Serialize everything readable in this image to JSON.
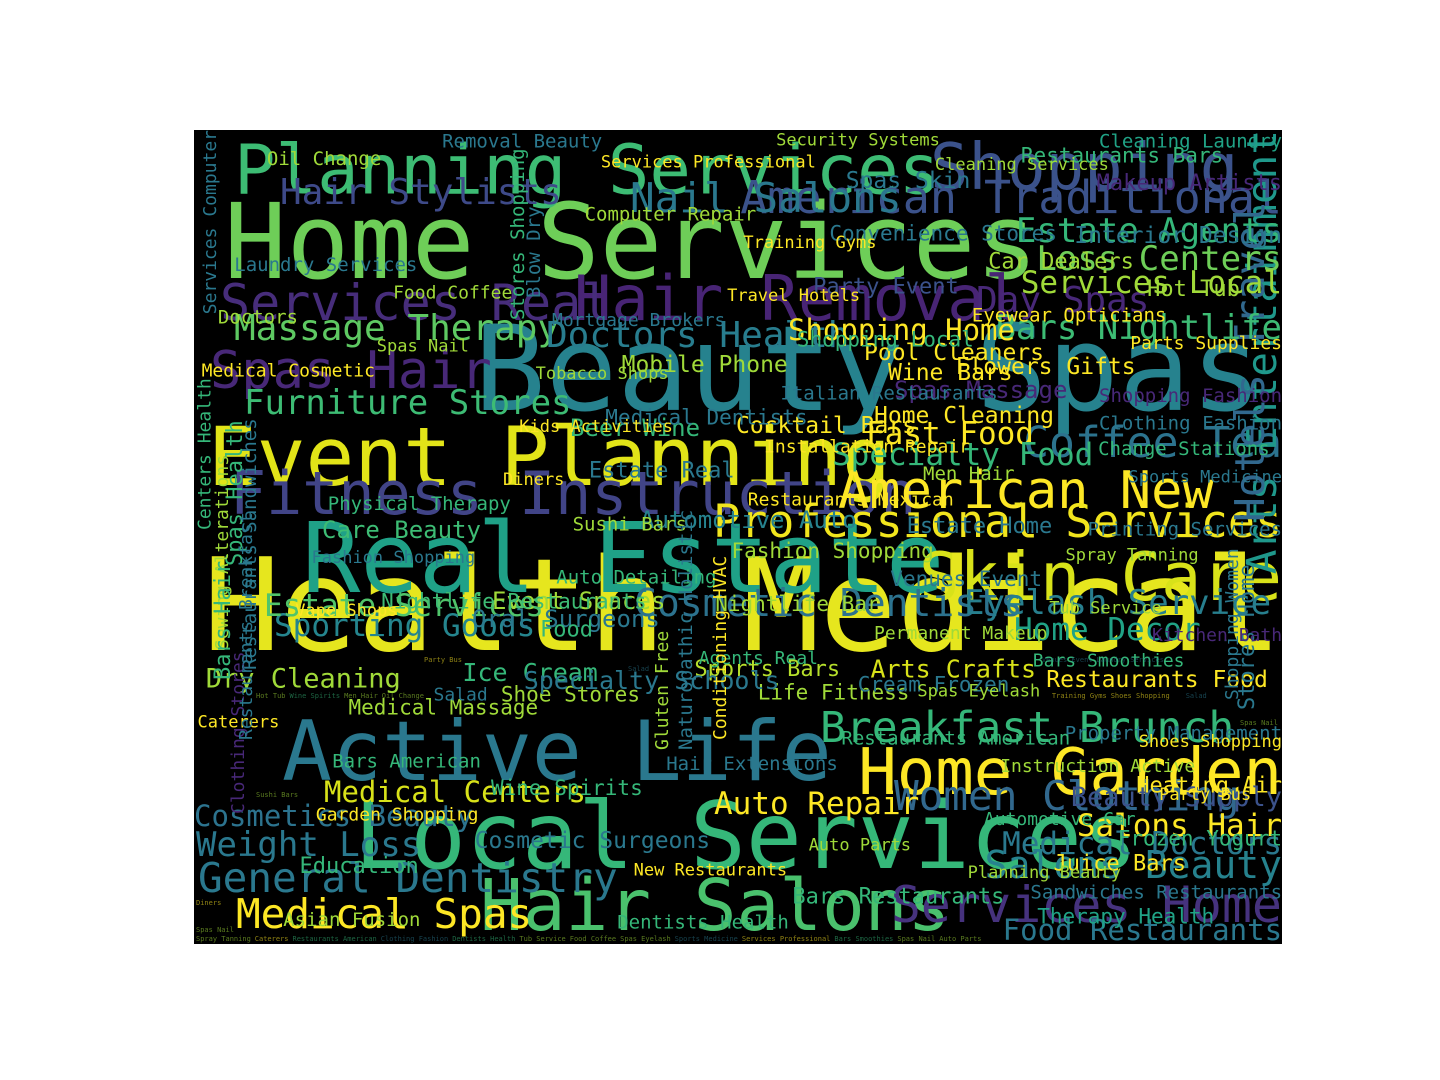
{
  "wordcloud": {
    "palette": [
      "#fde725",
      "#c2df23",
      "#7ad151",
      "#35b779",
      "#22a884",
      "#1f988b",
      "#23888e",
      "#2a788e",
      "#33638d",
      "#3b528b",
      "#433e85",
      "#482374",
      "#440154"
    ],
    "words": [
      {
        "text": "Health Medical",
        "weight": 1.0,
        "color": "#e6e61e"
      },
      {
        "text": "Beauty Spas",
        "weight": 0.92,
        "color": "#26828e"
      },
      {
        "text": "Home Services",
        "weight": 0.8,
        "color": "#6ece58"
      },
      {
        "text": "Real Estate",
        "weight": 0.74,
        "color": "#1fa187"
      },
      {
        "text": "Local Services",
        "weight": 0.7,
        "color": "#35b779"
      },
      {
        "text": "Active Life",
        "weight": 0.62,
        "color": "#2a788e"
      },
      {
        "text": "Event Planning",
        "weight": 0.6,
        "color": "#e2e418"
      },
      {
        "text": "Hair Salons",
        "weight": 0.52,
        "color": "#4ac16d"
      },
      {
        "text": "Planning Services",
        "weight": 0.5,
        "color": "#3dbc74"
      },
      {
        "text": "Skin Care",
        "weight": 0.48,
        "color": "#d8e219"
      },
      {
        "text": "Home Garden",
        "weight": 0.46,
        "color": "#fde725"
      },
      {
        "text": "Shopping",
        "weight": 0.46,
        "color": "#3b528b"
      },
      {
        "text": "Hair Removal",
        "weight": 0.44,
        "color": "#482475"
      },
      {
        "text": "Fitness Instruction",
        "weight": 0.42,
        "color": "#414487"
      },
      {
        "text": "Spas Hair",
        "weight": 0.36,
        "color": "#482878"
      },
      {
        "text": "Services Real",
        "weight": 0.34,
        "color": "#472d7b"
      },
      {
        "text": "American New",
        "weight": 0.36,
        "color": "#fde725"
      },
      {
        "text": "Services Home",
        "weight": 0.34,
        "color": "#46327e"
      },
      {
        "text": "Professional Services",
        "weight": 0.3,
        "color": "#f1e51d"
      },
      {
        "text": "American Traditional",
        "weight": 0.3,
        "color": "#3b528b"
      },
      {
        "text": "Breakfast Brunch",
        "weight": 0.28,
        "color": "#35b779"
      },
      {
        "text": "Coffee Tea",
        "weight": 0.28,
        "color": "#2c738e"
      },
      {
        "text": "Nail Salons",
        "weight": 0.26,
        "color": "#2a788e"
      },
      {
        "text": "Women Clothing",
        "weight": 0.26,
        "color": "#31688e"
      },
      {
        "text": "Arts Entertainment",
        "weight": 0.26,
        "color": "#1f988b"
      },
      {
        "text": "Medical Spas",
        "weight": 0.26,
        "color": "#fde725"
      },
      {
        "text": "General Dentistry",
        "weight": 0.26,
        "color": "#2a788e"
      },
      {
        "text": "Hotels Travel",
        "weight": 0.26,
        "color": "#31688e"
      },
      {
        "text": "Salons Beauty",
        "weight": 0.24,
        "color": "#26828e"
      },
      {
        "text": "Cosmetic Dentists",
        "weight": 0.24,
        "color": "#2c728e"
      },
      {
        "text": "Hair Stylists",
        "weight": 0.22,
        "color": "#3e4a89"
      },
      {
        "text": "Massage Therapy",
        "weight": 0.22,
        "color": "#5ec962"
      },
      {
        "text": "Furniture Stores",
        "weight": 0.2,
        "color": "#3dbc74"
      },
      {
        "text": "Doctors Health",
        "weight": 0.22,
        "color": "#287d8e"
      },
      {
        "text": "Day Spas",
        "weight": 0.22,
        "color": "#482878"
      },
      {
        "text": "Bars Nightlife",
        "weight": 0.2,
        "color": "#3dbc74"
      },
      {
        "text": "Estate Agents",
        "weight": 0.2,
        "color": "#35b779"
      },
      {
        "text": "Loss Centers",
        "weight": 0.2,
        "color": "#6ece58"
      },
      {
        "text": "Services Local",
        "weight": 0.18,
        "color": "#a0da39"
      },
      {
        "text": "Eyelash Service",
        "weight": 0.2,
        "color": "#277f8e"
      },
      {
        "text": "Home Decor",
        "weight": 0.18,
        "color": "#20a386"
      },
      {
        "text": "Weight Loss",
        "weight": 0.2,
        "color": "#2a788e"
      },
      {
        "text": "Sporting Goods",
        "weight": 0.18,
        "color": "#25858e"
      },
      {
        "text": "Estate Services",
        "weight": 0.18,
        "color": "#50c46a"
      },
      {
        "text": "Auto Repair",
        "weight": 0.18,
        "color": "#fde725"
      },
      {
        "text": "Salons Hair",
        "weight": 0.18,
        "color": "#fde725"
      },
      {
        "text": "Medical Doctors",
        "weight": 0.18,
        "color": "#2a788e"
      },
      {
        "text": "Fast Food",
        "weight": 0.18,
        "color": "#fde725"
      },
      {
        "text": "Specialty Food",
        "weight": 0.18,
        "color": "#35b779"
      },
      {
        "text": "Cosmetics Beauty",
        "weight": 0.16,
        "color": "#2c738e"
      },
      {
        "text": "Medical Centers",
        "weight": 0.16,
        "color": "#d8e219"
      },
      {
        "text": "Shopping Home",
        "weight": 0.16,
        "color": "#fde725"
      },
      {
        "text": "Food Restaurants",
        "weight": 0.16,
        "color": "#2a788e"
      },
      {
        "text": "Dry Cleaning",
        "weight": 0.14,
        "color": "#a0da39"
      },
      {
        "text": "Ice Cream",
        "weight": 0.13,
        "color": "#35b779"
      },
      {
        "text": "Beauty Supply",
        "weight": 0.14,
        "color": "#3b528b"
      },
      {
        "text": "Arts Crafts",
        "weight": 0.13,
        "color": "#d8e219"
      },
      {
        "text": "Oral Surgeons",
        "weight": 0.12,
        "color": "#2a788e"
      },
      {
        "text": "Event Spaces",
        "weight": 0.12,
        "color": "#a0da39"
      },
      {
        "text": "Care Beauty",
        "weight": 0.12,
        "color": "#3dbc74"
      },
      {
        "text": "Spas Massage",
        "weight": 0.12,
        "color": "#482878"
      },
      {
        "text": "Pool Cleaners",
        "weight": 0.11,
        "color": "#fde725"
      },
      {
        "text": "Wine Bars",
        "weight": 0.11,
        "color": "#fde725"
      },
      {
        "text": "Home Cleaning",
        "weight": 0.11,
        "color": "#fde725"
      },
      {
        "text": "Cocktail Bars",
        "weight": 0.11,
        "color": "#fde725"
      },
      {
        "text": "Beer Wine",
        "weight": 0.12,
        "color": "#35b779"
      },
      {
        "text": "Automotive Auto",
        "weight": 0.12,
        "color": "#26828e"
      },
      {
        "text": "Spas Skin",
        "weight": 0.11,
        "color": "#2a788e"
      },
      {
        "text": "Restaurants Food",
        "weight": 0.11,
        "color": "#fde725"
      },
      {
        "text": "Mobile Phone",
        "weight": 0.11,
        "color": "#a0da39"
      },
      {
        "text": "Juice Bars",
        "weight": 0.1,
        "color": "#fde725"
      },
      {
        "text": "Sports Bars",
        "weight": 0.1,
        "color": "#b5de2b"
      },
      {
        "text": "Convenience Stores",
        "weight": 0.09,
        "color": "#2a788e"
      },
      {
        "text": "Property Management",
        "weight": 0.08,
        "color": "#2a788e"
      },
      {
        "text": "Medical Dentists",
        "weight": 0.09,
        "color": "#2a788e"
      },
      {
        "text": "Therapy Health",
        "weight": 0.09,
        "color": "#20a386"
      },
      {
        "text": "Nightlife Restaurants",
        "weight": 0.09,
        "color": "#3dbc74"
      },
      {
        "text": "Party Event",
        "weight": 0.1,
        "color": "#3b528b"
      },
      {
        "text": "Heating Air",
        "weight": 0.1,
        "color": "#fde725"
      },
      {
        "text": "Estate Real",
        "weight": 0.1,
        "color": "#2a788e"
      },
      {
        "text": "Restaurants Bars",
        "weight": 0.09,
        "color": "#35b779"
      },
      {
        "text": "Shoe Stores",
        "weight": 0.09,
        "color": "#a0da39"
      },
      {
        "text": "Shopping Local",
        "weight": 0.09,
        "color": "#35b779"
      },
      {
        "text": "Frozen Yogurt",
        "weight": 0.09,
        "color": "#35b779"
      },
      {
        "text": "Sushi Bars",
        "weight": 0.08,
        "color": "#a0da39"
      },
      {
        "text": "Life Fitness",
        "weight": 0.09,
        "color": "#a0da39"
      },
      {
        "text": "Medical Massage",
        "weight": 0.09,
        "color": "#a0da39"
      },
      {
        "text": "Italian Restaurants",
        "weight": 0.08,
        "color": "#2a788e"
      },
      {
        "text": "Sandwiches Restaurants",
        "weight": 0.08,
        "color": "#2a788e"
      },
      {
        "text": "Auto Detailing",
        "weight": 0.08,
        "color": "#35b779"
      },
      {
        "text": "Car Dealers",
        "weight": 0.1,
        "color": "#a0da39"
      },
      {
        "text": "Bars American",
        "weight": 0.08,
        "color": "#35b779"
      },
      {
        "text": "Installation Repair",
        "weight": 0.07,
        "color": "#fde725"
      },
      {
        "text": "Cleaning Laundry",
        "weight": 0.08,
        "color": "#20a386"
      },
      {
        "text": "Food",
        "weight": 0.1,
        "color": "#35b779"
      },
      {
        "text": "Eyewear Opticians",
        "weight": 0.08,
        "color": "#fde725"
      },
      {
        "text": "Garden Shopping",
        "weight": 0.07,
        "color": "#fde725"
      },
      {
        "text": "Restaurants Mexican",
        "weight": 0.07,
        "color": "#fde725"
      },
      {
        "text": "Makeup Artists",
        "weight": 0.1,
        "color": "#482878"
      },
      {
        "text": "Specialty Schools",
        "weight": 0.13,
        "color": "#2a788e"
      },
      {
        "text": "Flowers Gifts",
        "weight": 0.11,
        "color": "#fde725"
      },
      {
        "text": "Education",
        "weight": 0.1,
        "color": "#35b779"
      },
      {
        "text": "Fashion Shopping",
        "weight": 0.09,
        "color": "#a0da39"
      },
      {
        "text": "Interior Design",
        "weight": 0.11,
        "color": "#2a788e"
      },
      {
        "text": "Stores Home",
        "weight": 0.1,
        "color": "#2a788e"
      },
      {
        "text": "Shopping Women",
        "weight": 0.07,
        "color": "#2a788e"
      },
      {
        "text": "Asian Fusion",
        "weight": 0.08,
        "color": "#a0da39"
      },
      {
        "text": "Nightlife Bar",
        "weight": 0.09,
        "color": "#a0da39"
      },
      {
        "text": "Hot Tub",
        "weight": 0.1,
        "color": "#a0da39"
      },
      {
        "text": "Wine Spirits",
        "weight": 0.09,
        "color": "#35b779"
      },
      {
        "text": "Men Hair",
        "weight": 0.08,
        "color": "#a0da39"
      },
      {
        "text": "Oil Change",
        "weight": 0.08,
        "color": "#a0da39"
      },
      {
        "text": "Agents Real",
        "weight": 0.07,
        "color": "#35b779"
      },
      {
        "text": "Parts Supplies",
        "weight": 0.07,
        "color": "#fde725"
      },
      {
        "text": "Cosmetic Surgeons",
        "weight": 0.11,
        "color": "#2a788e"
      },
      {
        "text": "Estate Home",
        "weight": 0.1,
        "color": "#2a788e"
      },
      {
        "text": "Restaurants Sandwiches",
        "weight": 0.08,
        "color": "#2a788e"
      },
      {
        "text": "Spas Health",
        "weight": 0.1,
        "color": "#35b779"
      },
      {
        "text": "Shopping Fashion",
        "weight": 0.08,
        "color": "#482878"
      },
      {
        "text": "Sewing Alterations",
        "weight": 0.07,
        "color": "#a0da39"
      },
      {
        "text": "Venues Event",
        "weight": 0.09,
        "color": "#2a788e"
      },
      {
        "text": "Laundry Services",
        "weight": 0.08,
        "color": "#2a788e"
      },
      {
        "text": "Hair Extensions",
        "weight": 0.08,
        "color": "#2a788e"
      },
      {
        "text": "Change Stations",
        "weight": 0.08,
        "color": "#35b779"
      },
      {
        "text": "Removal Beauty",
        "weight": 0.08,
        "color": "#2a788e"
      },
      {
        "text": "Permanent Makeup",
        "weight": 0.07,
        "color": "#a0da39"
      },
      {
        "text": "Doctors",
        "weight": 0.08,
        "color": "#a0da39"
      },
      {
        "text": "Gluten Free",
        "weight": 0.07,
        "color": "#a0da39"
      },
      {
        "text": "Naturopathic Holistic",
        "weight": 0.08,
        "color": "#2a788e"
      },
      {
        "text": "Conditioning HVAC",
        "weight": 0.07,
        "color": "#fde725"
      },
      {
        "text": "Cream Frozen",
        "weight": 0.09,
        "color": "#2a788e"
      },
      {
        "text": "Medical Cosmetic",
        "weight": 0.07,
        "color": "#fde725"
      },
      {
        "text": "New Restaurants",
        "weight": 0.06,
        "color": "#fde725"
      },
      {
        "text": "Spray Tanning",
        "weight": 0.06,
        "color": "#a0da39"
      },
      {
        "text": "Caterers",
        "weight": 0.06,
        "color": "#fde725"
      },
      {
        "text": "Restaurants American",
        "weight": 0.08,
        "color": "#35b779"
      },
      {
        "text": "Clothing Fashion",
        "weight": 0.08,
        "color": "#2a788e"
      },
      {
        "text": "Dentists Health",
        "weight": 0.08,
        "color": "#35b779"
      },
      {
        "text": "Tub Service",
        "weight": 0.06,
        "color": "#a0da39"
      },
      {
        "text": "Food Coffee",
        "weight": 0.07,
        "color": "#a0da39"
      },
      {
        "text": "Spas Eyelash",
        "weight": 0.06,
        "color": "#a0da39"
      },
      {
        "text": "Sports Medicine",
        "weight": 0.06,
        "color": "#2a788e"
      },
      {
        "text": "Services Professional",
        "weight": 0.06,
        "color": "#fde725"
      },
      {
        "text": "Bars Smoothies",
        "weight": 0.07,
        "color": "#35b779"
      },
      {
        "text": "Spas Nail",
        "weight": 0.06,
        "color": "#a0da39"
      },
      {
        "text": "Auto Parts",
        "weight": 0.06,
        "color": "#a0da39"
      },
      {
        "text": "Printing Services",
        "weight": 0.08,
        "color": "#2a788e"
      },
      {
        "text": "Computer Repair",
        "weight": 0.08,
        "color": "#a0da39"
      },
      {
        "text": "Clothing Stores",
        "weight": 0.07,
        "color": "#482878"
      },
      {
        "text": "Restaurants Breakfast",
        "weight": 0.07,
        "color": "#2a788e"
      },
      {
        "text": "Bars Restaurants",
        "weight": 0.1,
        "color": "#35b779"
      },
      {
        "text": "Bars Hair",
        "weight": 0.1,
        "color": "#35b779"
      },
      {
        "text": "Services Computer",
        "weight": 0.07,
        "color": "#2a788e"
      },
      {
        "text": "Instruction Active",
        "weight": 0.07,
        "color": "#a0da39"
      },
      {
        "text": "Centers Health",
        "weight": 0.07,
        "color": "#35b779"
      },
      {
        "text": "Security Systems",
        "weight": 0.06,
        "color": "#a0da39"
      },
      {
        "text": "Kitchen Bath",
        "weight": 0.07,
        "color": "#482878"
      },
      {
        "text": "Mortgage Brokers",
        "weight": 0.07,
        "color": "#2a788e"
      },
      {
        "text": "Automotive Car",
        "weight": 0.07,
        "color": "#35b779"
      },
      {
        "text": "Physical Therapy",
        "weight": 0.08,
        "color": "#35b779"
      },
      {
        "text": "Stores Shopping",
        "weight": 0.08,
        "color": "#35b779"
      },
      {
        "text": "Blow Dry",
        "weight": 0.08,
        "color": "#2a788e"
      },
      {
        "text": "Tobacco Shops",
        "weight": 0.06,
        "color": "#a0da39"
      },
      {
        "text": "Planning Beauty",
        "weight": 0.06,
        "color": "#a0da39"
      },
      {
        "text": "Fashion Shopping",
        "weight": 0.06,
        "color": "#2a788e"
      },
      {
        "text": "Training Gyms",
        "weight": 0.06,
        "color": "#fde725"
      },
      {
        "text": "Shoes Shopping",
        "weight": 0.06,
        "color": "#fde725"
      },
      {
        "text": "Kids Activities",
        "weight": 0.06,
        "color": "#fde725"
      },
      {
        "text": "Salad",
        "weight": 0.07,
        "color": "#2a788e"
      },
      {
        "text": "Vape Shops",
        "weight": 0.06,
        "color": "#fde725"
      },
      {
        "text": "Travel Hotels",
        "weight": 0.06,
        "color": "#fde725"
      },
      {
        "text": "Party Bus",
        "weight": 0.06,
        "color": "#fde725"
      },
      {
        "text": "Diners",
        "weight": 0.06,
        "color": "#fde725"
      },
      {
        "text": "Cleaning Services",
        "weight": 0.06,
        "color": "#a0da39"
      }
    ]
  }
}
